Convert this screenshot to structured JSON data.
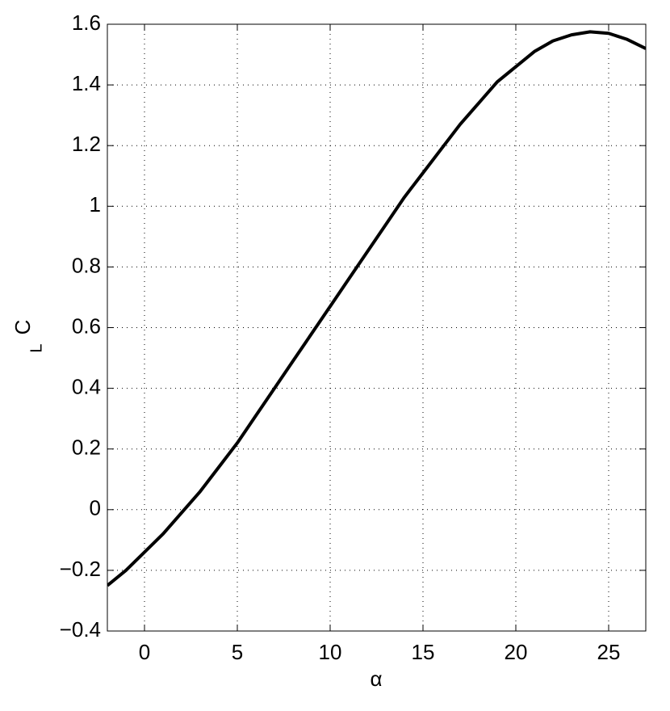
{
  "chart_data": {
    "type": "line",
    "xlabel": "α",
    "ylabel": {
      "text": "C",
      "subscript": "L"
    },
    "x": [
      -2,
      -1,
      0,
      1,
      2,
      3,
      4,
      5,
      6,
      7,
      8,
      9,
      10,
      11,
      12,
      13,
      14,
      15,
      16,
      17,
      18,
      19,
      20,
      21,
      22,
      23,
      24,
      25,
      26,
      27
    ],
    "series": [
      {
        "color": "#000000",
        "values": [
          -0.25,
          -0.2,
          -0.14,
          -0.08,
          -0.01,
          0.06,
          0.14,
          0.22,
          0.31,
          0.4,
          0.49,
          0.58,
          0.67,
          0.76,
          0.85,
          0.94,
          1.03,
          1.11,
          1.19,
          1.27,
          1.34,
          1.41,
          1.46,
          1.51,
          1.545,
          1.565,
          1.575,
          1.57,
          1.55,
          1.52
        ]
      }
    ],
    "xlim": [
      -2,
      27
    ],
    "xticks": [
      0,
      5,
      10,
      15,
      20,
      25
    ],
    "ylim": [
      -0.4,
      1.6
    ],
    "yticks": [
      {
        "value": -0.4,
        "label": "−0.4"
      },
      {
        "value": -0.2,
        "label": "−0.2"
      },
      0,
      0.2,
      0.4,
      0.6,
      0.8,
      1,
      1.2,
      1.4,
      1.6
    ],
    "grid": true
  }
}
